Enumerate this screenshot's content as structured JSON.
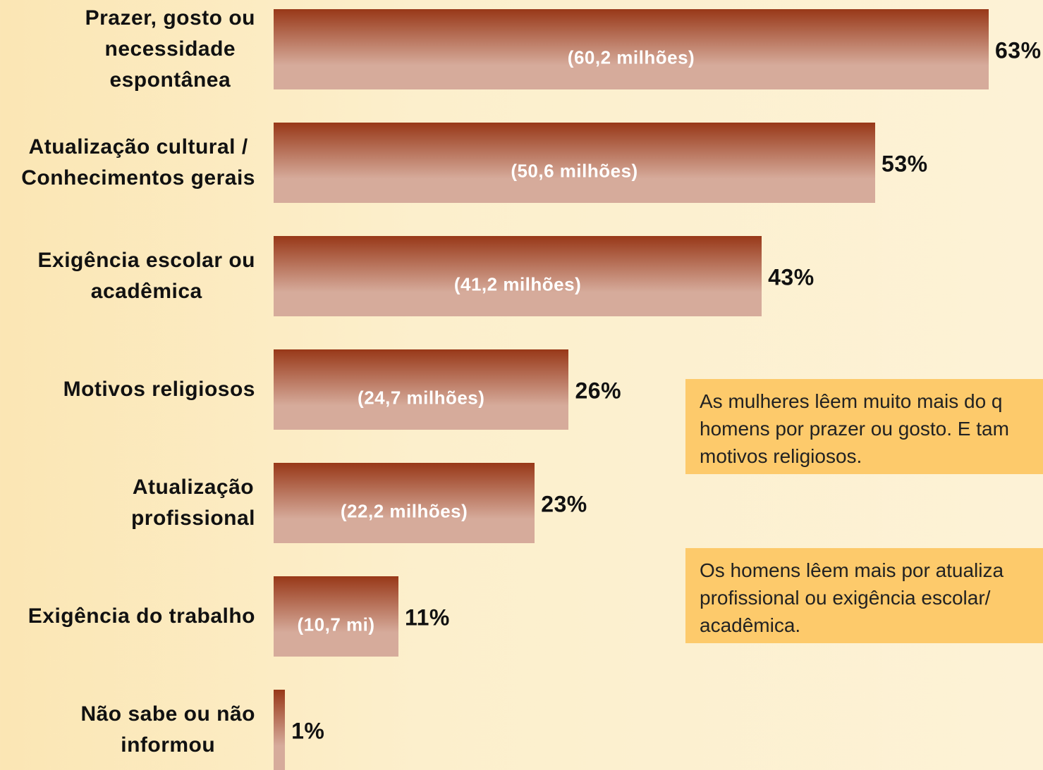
{
  "chart_data": {
    "type": "bar",
    "orientation": "horizontal",
    "categories": [
      "Prazer, gosto ou\nnecessidade\nespontânea",
      "Atualização cultural /\nConhecimentos gerais",
      "Exigência escolar ou\nacadêmica",
      "Motivos religiosos",
      "Atualização\nprofissional",
      "Exigência do trabalho",
      "Não sabe ou não\ninformou"
    ],
    "values": [
      63,
      53,
      43,
      26,
      23,
      11,
      1
    ],
    "value_labels": [
      "63%",
      "53%",
      "43%",
      "26%",
      "23%",
      "11%",
      "1%"
    ],
    "inner_labels": [
      "(60,2 milhões)",
      "(50,6 milhões)",
      "(41,2 milhões)",
      "(24,7 milhões)",
      "(22,2 milhões)",
      "(10,7 mi)",
      null
    ],
    "xlim": [
      0,
      63
    ],
    "color": [
      "#983818",
      "#d6ab9b"
    ],
    "notes": [
      "As mulheres lêem muito mais do q\nhomens por prazer ou gosto. E tam\nmotivos religiosos.",
      "Os homens lêem mais por atualiza\nprofissional ou exigência escolar/\nacadêmica."
    ]
  }
}
